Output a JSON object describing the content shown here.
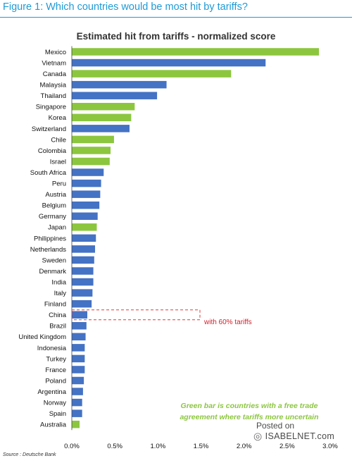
{
  "figure_title": "Figure 1: Which countries would be most hit by tariffs?",
  "source": "Source : Deutsche Bank",
  "watermark": {
    "line1": "Posted on",
    "site": "ISABELNET.com"
  },
  "annotations": {
    "china": "with 60% tariffs",
    "green_note_line1": "Green bar is countries with a free trade",
    "green_note_line2": "agreement where tariffs more uncertain"
  },
  "colors": {
    "fta": "#8cc63f",
    "other": "#4472c4",
    "china_box": "#e03a3a",
    "title": "#1e9ad6"
  },
  "chart_data": {
    "type": "bar",
    "orientation": "horizontal",
    "title": "Estimated hit from tariffs - normalized score",
    "xlabel": "",
    "ylabel": "",
    "xlim": [
      0,
      3.0
    ],
    "xticks": [
      "0.0%",
      "0.5%",
      "1.0%",
      "1.5%",
      "2.0%",
      "2.5%",
      "3.0%"
    ],
    "unit": "%",
    "grid": false,
    "categories": [
      "Mexico",
      "Vietnam",
      "Canada",
      "Malaysia",
      "Thailand",
      "Singapore",
      "Korea",
      "Switzerland",
      "Chile",
      "Colombia",
      "Israel",
      "South Africa",
      "Peru",
      "Austria",
      "Belgium",
      "Germany",
      "Japan",
      "Philippines",
      "Netherlands",
      "Sweden",
      "Denmark",
      "India",
      "Italy",
      "Finland",
      "China",
      "Brazil",
      "United Kingdom",
      "Indonesia",
      "Turkey",
      "France",
      "Poland",
      "Argentina",
      "Norway",
      "Spain",
      "Australia"
    ],
    "values": [
      2.87,
      2.25,
      1.85,
      1.1,
      0.99,
      0.73,
      0.69,
      0.67,
      0.49,
      0.45,
      0.44,
      0.37,
      0.34,
      0.33,
      0.32,
      0.3,
      0.29,
      0.28,
      0.27,
      0.26,
      0.25,
      0.25,
      0.24,
      0.23,
      0.18,
      0.17,
      0.16,
      0.15,
      0.15,
      0.15,
      0.14,
      0.13,
      0.12,
      0.12,
      0.09
    ],
    "fta": [
      true,
      false,
      true,
      false,
      false,
      true,
      true,
      false,
      true,
      true,
      true,
      false,
      false,
      false,
      false,
      false,
      true,
      false,
      false,
      false,
      false,
      false,
      false,
      false,
      false,
      false,
      false,
      false,
      false,
      false,
      false,
      false,
      false,
      false,
      true
    ]
  }
}
